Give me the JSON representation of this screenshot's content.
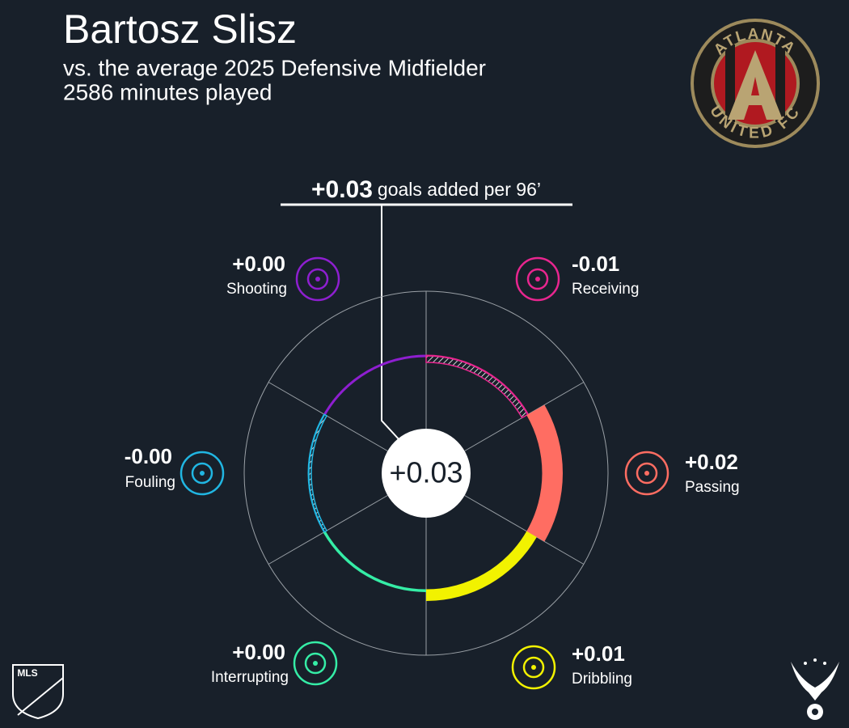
{
  "chart_data": {
    "type": "radial",
    "title": "Bartosz Slisz",
    "subtitle": [
      "vs. the average 2025 Defensive Midfielder",
      "2586 minutes played"
    ],
    "total": 0.029,
    "total_label": "+0.03",
    "total_caption": "goals added per 96’",
    "categories": [
      "Shooting",
      "Receiving",
      "Passing",
      "Dribbling",
      "Interrupting",
      "Fouling"
    ],
    "values": [
      0.001,
      -0.008,
      0.024,
      0.013,
      0.002,
      -0.003
    ],
    "value_labels": [
      "+0.00",
      "-0.01",
      "+0.02",
      "+0.01",
      "+0.00",
      "-0.00"
    ],
    "colors": [
      "#8e1fd0",
      "#e8268f",
      "#ff6d62",
      "#f2f200",
      "#35eda6",
      "#21b6e2"
    ],
    "club_logo_text": [
      "ATLANTA",
      "UNITED FC"
    ],
    "league_logo_text": "MLS"
  }
}
